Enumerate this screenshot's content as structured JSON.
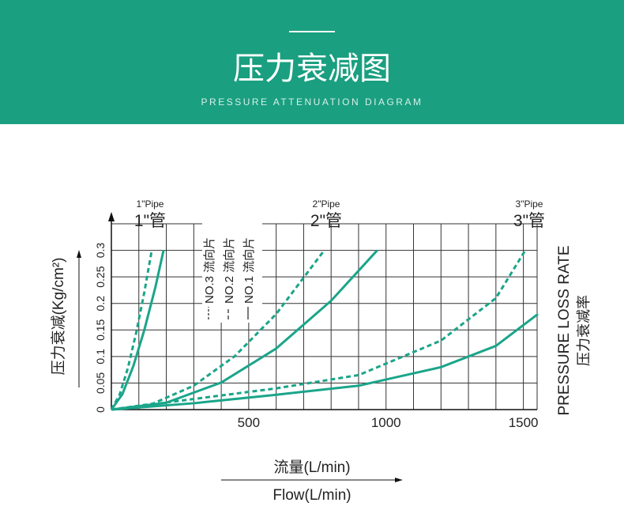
{
  "header": {
    "title": "压力衰减图",
    "subtitle": "PRESSURE ATTENUATION DIAGRAM"
  },
  "chart_data": {
    "type": "line",
    "y_label": "压力衰减(Kg/cm²)",
    "right_label": "PRESSURE LOSS RATE",
    "right_label_cn": "压力衰减率",
    "x_label": "流量(L/min)",
    "x_label_en": "Flow(L/min)",
    "pipes": [
      {
        "label": "1\"Pipe",
        "label_cn": "1\"管"
      },
      {
        "label": "2\"Pipe",
        "label_cn": "2\"管"
      },
      {
        "label": "3\"Pipe",
        "label_cn": "3\"管"
      }
    ],
    "legend": [
      {
        "text": "NO.3 流向片",
        "style": "dashdot"
      },
      {
        "text": "NO.2 流向片",
        "style": "dashed"
      },
      {
        "text": "NO.1 流向片",
        "style": "solid"
      }
    ],
    "xlim": [
      0,
      1550
    ],
    "ylim": [
      0,
      0.35
    ],
    "xticks": [
      500,
      1000,
      1500
    ],
    "xminor": [
      100,
      200,
      300,
      400,
      500,
      600,
      700,
      800,
      900,
      1000,
      1100,
      1200,
      1300,
      1400,
      1500
    ],
    "yticks": [
      0,
      0.05,
      0.1,
      0.15,
      0.2,
      0.25,
      0.3
    ],
    "grid": true,
    "series": [
      {
        "color": "#1aa58a",
        "dashed": false,
        "x": [
          0,
          40,
          80,
          120,
          160,
          190
        ],
        "values": [
          0,
          0.029,
          0.082,
          0.15,
          0.23,
          0.3
        ]
      },
      {
        "color": "#1aa58a",
        "dashed": true,
        "x": [
          0,
          30,
          60,
          90,
          120,
          147
        ],
        "values": [
          0,
          0.028,
          0.078,
          0.144,
          0.221,
          0.3
        ]
      },
      {
        "color": "#1aa58a",
        "dashed": false,
        "x": [
          0,
          200,
          400,
          600,
          800,
          968
        ],
        "values": [
          0,
          0.013,
          0.051,
          0.115,
          0.205,
          0.3
        ]
      },
      {
        "color": "#1aa58a",
        "dashed": true,
        "x": [
          0,
          150,
          300,
          450,
          600,
          775
        ],
        "values": [
          0,
          0.011,
          0.045,
          0.101,
          0.18,
          0.3
        ]
      },
      {
        "color": "#1aa58a",
        "dashed": true,
        "x": [
          0,
          300,
          600,
          900,
          1200,
          1400,
          1507
        ],
        "values": [
          0,
          0.02,
          0.04,
          0.065,
          0.13,
          0.21,
          0.3
        ]
      },
      {
        "color": "#1aa58a",
        "dashed": false,
        "x": [
          0,
          300,
          600,
          900,
          1200,
          1400,
          1553
        ],
        "values": [
          0,
          0.012,
          0.028,
          0.045,
          0.08,
          0.12,
          0.18
        ]
      }
    ]
  }
}
